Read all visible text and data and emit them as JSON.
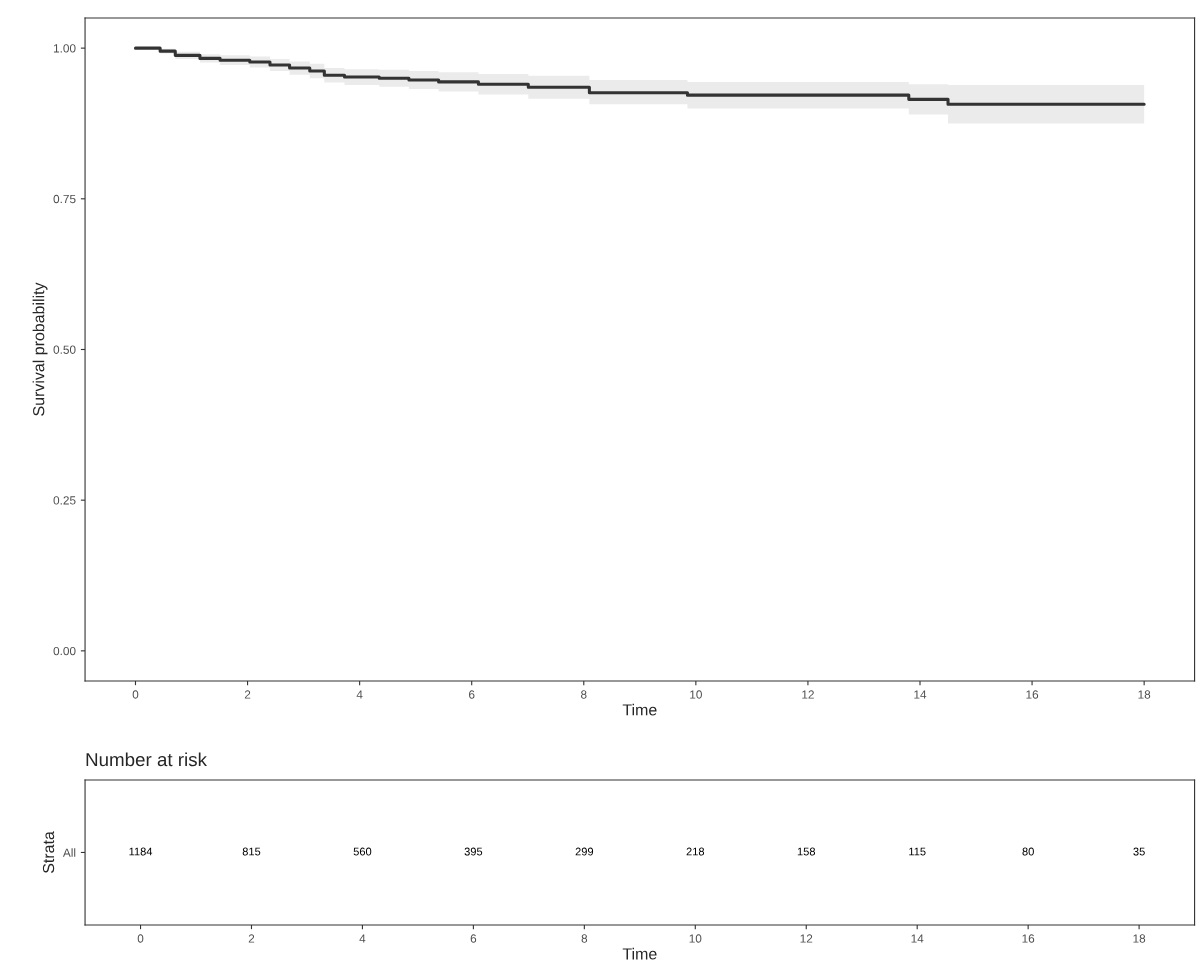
{
  "chart_data": [
    {
      "type": "step",
      "ylabel": "Survival probability",
      "xlabel": "Time",
      "xlim": [
        -0.9,
        18.9
      ],
      "ylim": [
        -0.05,
        1.05
      ],
      "xticks": [
        0,
        2,
        4,
        6,
        8,
        10,
        12,
        14,
        16,
        18
      ],
      "yticks": [
        {
          "value": 0,
          "label": "0.00"
        },
        {
          "value": 0.25,
          "label": "0.25"
        },
        {
          "value": 0.5,
          "label": "0.50"
        },
        {
          "value": 0.75,
          "label": "0.75"
        },
        {
          "value": 1,
          "label": "1.00"
        }
      ],
      "grid": false,
      "legend": false,
      "series": [
        {
          "color": "#333333",
          "line_style": "solid",
          "x": [
            0,
            0.44,
            0.71,
            1.15,
            1.51,
            2.04,
            2.4,
            2.75,
            3.11,
            3.37,
            3.73,
            4.35,
            4.88,
            5.41,
            6.12,
            7.01,
            8.1,
            9.85,
            13.8,
            14.5,
            18
          ],
          "values": [
            1.0,
            0.995,
            0.988,
            0.983,
            0.98,
            0.977,
            0.972,
            0.967,
            0.962,
            0.955,
            0.952,
            0.95,
            0.947,
            0.944,
            0.94,
            0.935,
            0.926,
            0.922,
            0.915,
            0.907,
            0.907
          ],
          "lower": [
            1.0,
            0.991,
            0.982,
            0.976,
            0.972,
            0.968,
            0.962,
            0.956,
            0.95,
            0.943,
            0.939,
            0.936,
            0.932,
            0.928,
            0.923,
            0.916,
            0.907,
            0.9,
            0.89,
            0.875,
            0.875
          ],
          "upper": [
            1.0,
            0.999,
            0.994,
            0.99,
            0.988,
            0.986,
            0.982,
            0.978,
            0.974,
            0.967,
            0.965,
            0.964,
            0.962,
            0.96,
            0.957,
            0.954,
            0.947,
            0.944,
            0.94,
            0.939,
            0.939
          ]
        }
      ]
    },
    {
      "type": "heatmap",
      "title": "Number at risk",
      "xlabel": "Time",
      "ylabel": "Strata",
      "y_categories": [
        "All"
      ],
      "categories": [
        "0",
        "2",
        "4",
        "6",
        "8",
        "10",
        "12",
        "14",
        "16",
        "18"
      ],
      "cells": [
        [
          1184,
          815,
          560,
          395,
          299,
          218,
          158,
          115,
          80,
          35
        ]
      ],
      "data_labels": true
    }
  ]
}
